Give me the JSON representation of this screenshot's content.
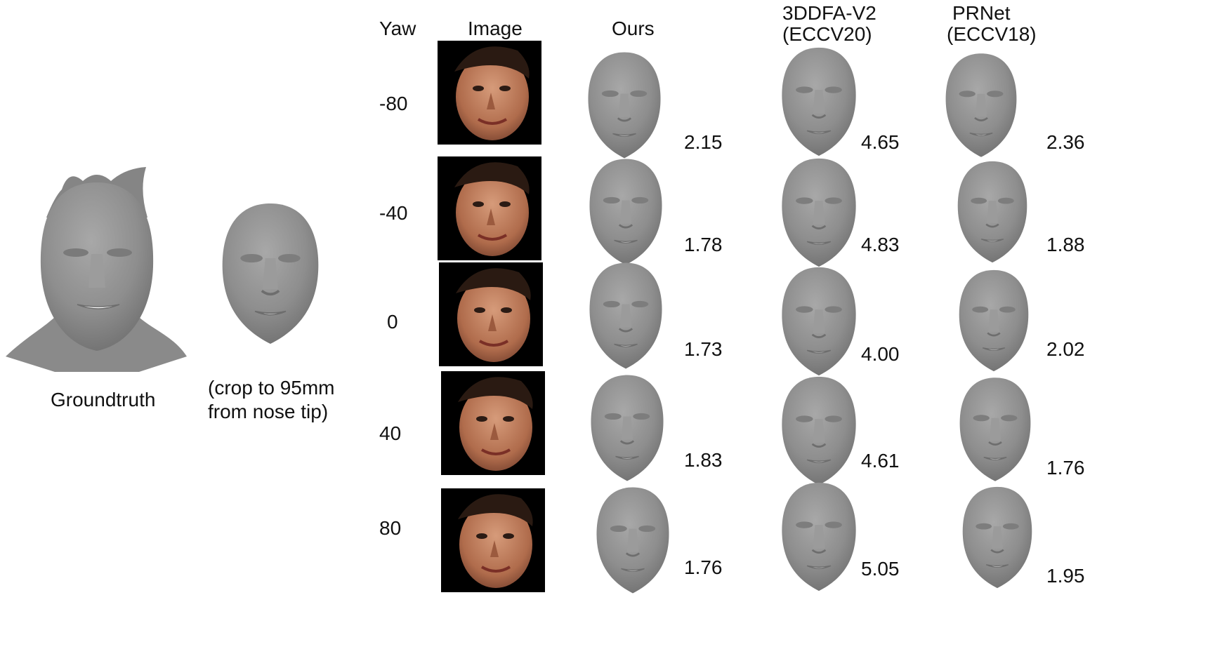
{
  "left": {
    "groundtruth_label": "Groundtruth",
    "crop_note_line1": "(crop to 95mm",
    "crop_note_line2": "from nose tip)"
  },
  "headers": {
    "yaw": "Yaw",
    "image": "Image",
    "ours": "Ours",
    "ddfa_line1": "3DDFA-V2",
    "ddfa_line2": "(ECCV20)",
    "prnet_line1": "PRNet",
    "prnet_line2": "(ECCV18)"
  },
  "rows": [
    {
      "yaw": "-80",
      "ours": "2.15",
      "ddfa": "4.65",
      "prnet": "2.36"
    },
    {
      "yaw": "-40",
      "ours": "1.78",
      "ddfa": "4.83",
      "prnet": "1.88"
    },
    {
      "yaw": "0",
      "ours": "1.73",
      "ddfa": "4.00",
      "prnet": "2.02"
    },
    {
      "yaw": "40",
      "ours": "1.83",
      "ddfa": "4.61",
      "prnet": "1.76"
    },
    {
      "yaw": "80",
      "ours": "1.76",
      "ddfa": "5.05",
      "prnet": "1.95"
    }
  ],
  "colors": {
    "mesh": "#8c8c8c",
    "photo_bg": "#000000",
    "skin": "#b9785a",
    "hair": "#2a1a12"
  }
}
